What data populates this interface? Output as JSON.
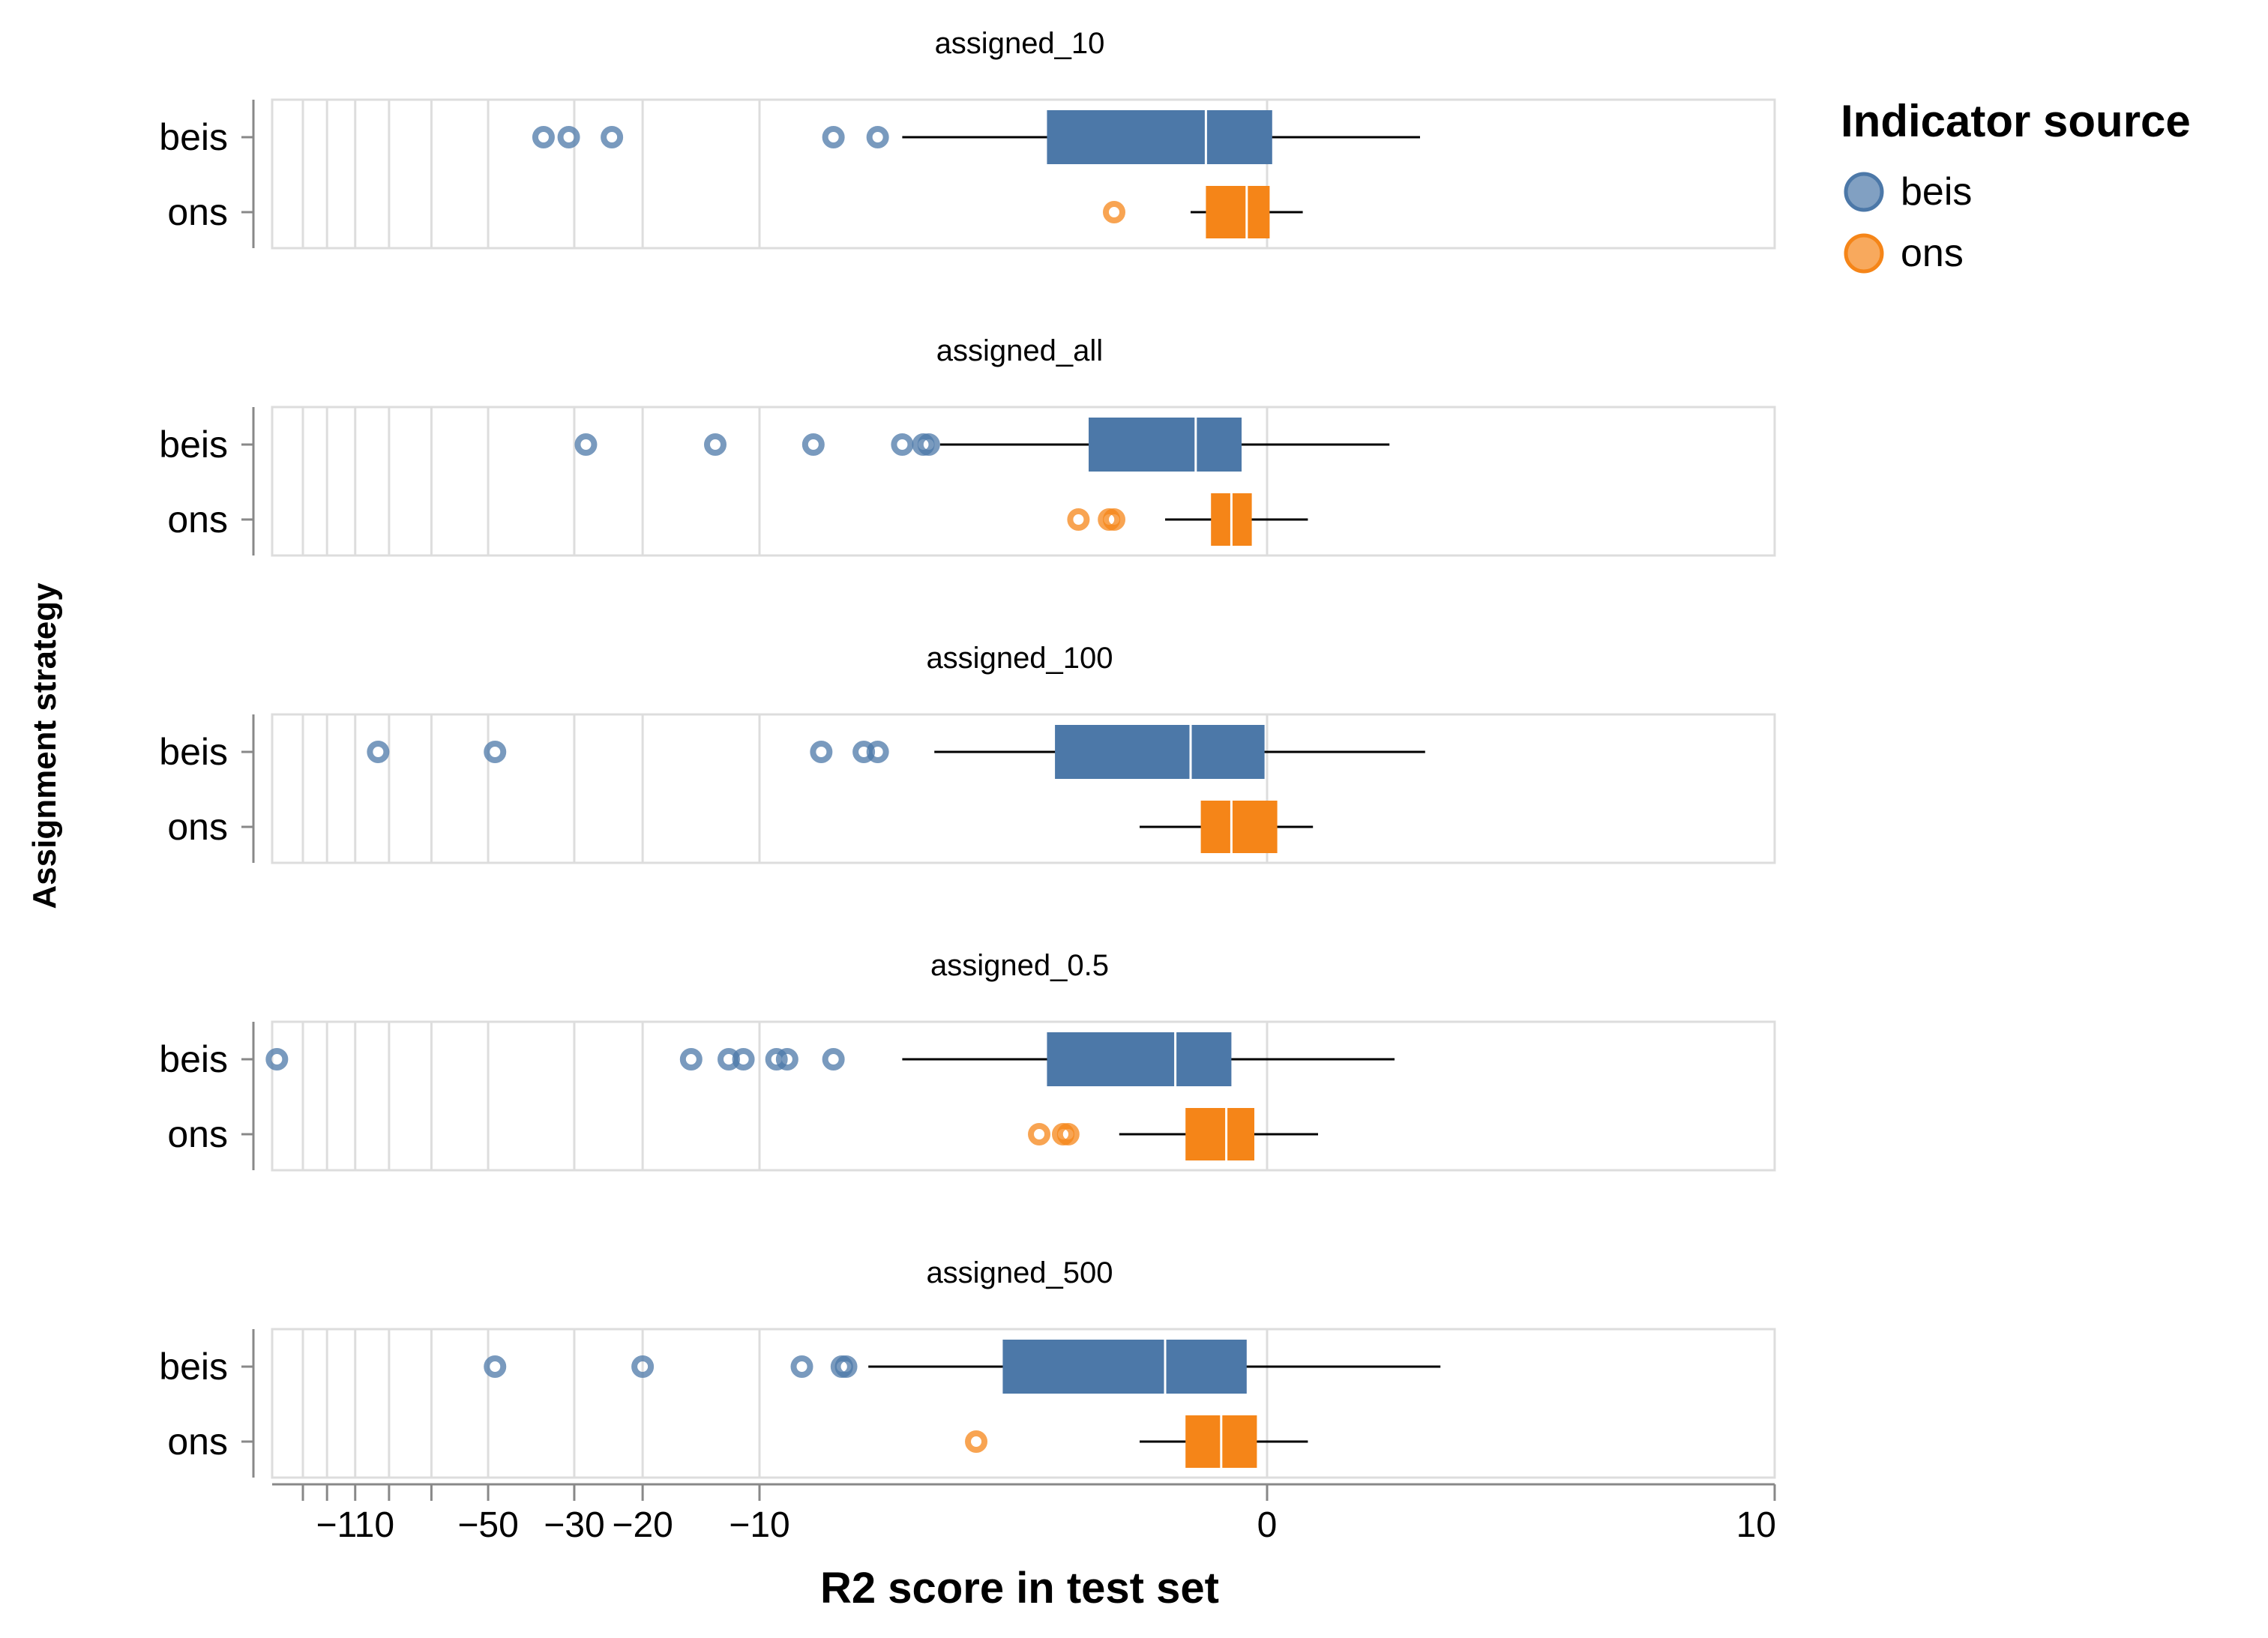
{
  "chart_data": {
    "type": "boxplot",
    "orientation": "horizontal",
    "xlabel": "R2 score in test set",
    "ylabel": "Assignment strategy",
    "x_scale": "symlog",
    "x_ticks": [
      -110,
      -50,
      -30,
      -20,
      -10,
      0,
      10
    ],
    "x_tick_labels": [
      "−110",
      "−50",
      "−30",
      "−20",
      "−10",
      "0",
      "10"
    ],
    "x_minor_ticks": [
      -150,
      -130,
      -90,
      -70
    ],
    "xlim": [
      -180,
      10
    ],
    "grid": true,
    "categories": [
      "beis",
      "ons"
    ],
    "legend": {
      "title": "Indicator source",
      "position": "top-right",
      "items": [
        {
          "label": "beis",
          "color": "#4c78a8"
        },
        {
          "label": "ons",
          "color": "#f58518"
        }
      ]
    },
    "facets": [
      {
        "title": "assigned_10",
        "boxes": [
          {
            "category": "beis",
            "whisker_low": -6.5,
            "q1": -4.2,
            "median": -1.2,
            "q3": 0.1,
            "whisker_high": 3.0,
            "outliers": [
              -36,
              -31,
              -24,
              -8.0,
              -7.0
            ]
          },
          {
            "category": "ons",
            "whisker_low": -1.5,
            "q1": -1.2,
            "median": -0.4,
            "q3": 0.05,
            "whisker_high": 0.7,
            "outliers": [
              -3.0
            ]
          }
        ]
      },
      {
        "title": "assigned_all",
        "boxes": [
          {
            "category": "beis",
            "whisker_low": -5.8,
            "q1": -3.5,
            "median": -1.4,
            "q3": -0.5,
            "whisker_high": 2.4,
            "outliers": [
              -28,
              -13,
              -8.5,
              -6.5,
              -6.1,
              -6.0
            ]
          },
          {
            "category": "ons",
            "whisker_low": -2.0,
            "q1": -1.1,
            "median": -0.7,
            "q3": -0.3,
            "whisker_high": 0.8,
            "outliers": [
              -3.7,
              -3.1,
              -3.0
            ]
          }
        ]
      },
      {
        "title": "assigned_100",
        "boxes": [
          {
            "category": "beis",
            "whisker_low": -5.9,
            "q1": -4.1,
            "median": -1.5,
            "q3": -0.05,
            "whisker_high": 3.1,
            "outliers": [
              -96,
              -48,
              -8.3,
              -7.3,
              -7.0
            ]
          },
          {
            "category": "ons",
            "whisker_low": -2.5,
            "q1": -1.3,
            "median": -0.7,
            "q3": 0.2,
            "whisker_high": 0.9,
            "outliers": []
          }
        ]
      },
      {
        "title": "assigned_0.5",
        "boxes": [
          {
            "category": "beis",
            "whisker_low": -6.5,
            "q1": -4.2,
            "median": -1.8,
            "q3": -0.7,
            "whisker_high": 2.5,
            "outliers": [
              -175,
              -15,
              -12,
              -11,
              -9.5,
              -9.2,
              -8.0
            ]
          },
          {
            "category": "ons",
            "whisker_low": -2.9,
            "q1": -1.6,
            "median": -0.8,
            "q3": -0.25,
            "whisker_high": 1.0,
            "outliers": [
              -4.3,
              -4.0,
              -3.9
            ]
          }
        ]
      },
      {
        "title": "assigned_500",
        "boxes": [
          {
            "category": "beis",
            "whisker_low": -7.2,
            "q1": -4.8,
            "median": -2.0,
            "q3": -0.4,
            "whisker_high": 3.4,
            "outliers": [
              -48,
              -20,
              -8.8,
              -7.8,
              -7.7
            ]
          },
          {
            "category": "ons",
            "whisker_low": -2.5,
            "q1": -1.6,
            "median": -0.9,
            "q3": -0.2,
            "whisker_high": 0.8,
            "outliers": [
              -5.2
            ]
          }
        ]
      }
    ]
  }
}
